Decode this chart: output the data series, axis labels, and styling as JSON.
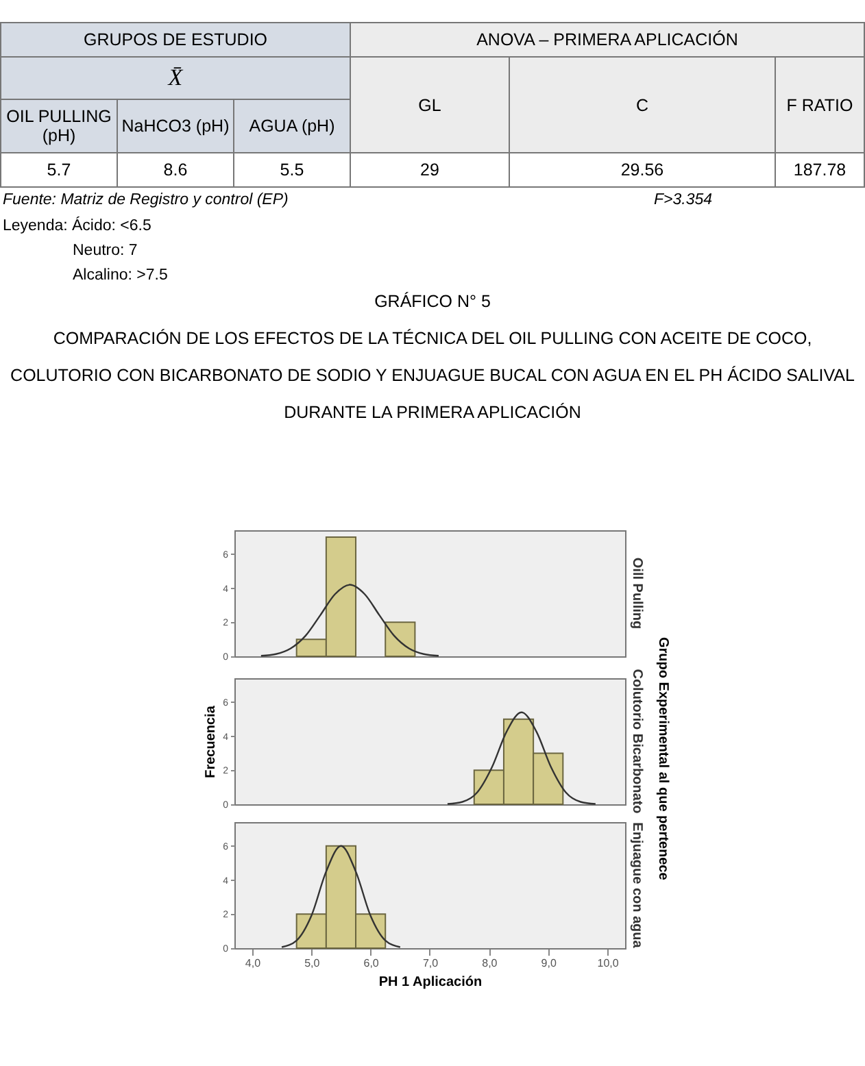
{
  "chart_data": [
    {
      "type": "other",
      "annotations": [
        "GRUPOS DE ESTUDIO",
        "ANOVA – PRIMERA APLICACIÓN",
        "X̄",
        "GL",
        "C",
        "F RATIO",
        "OIL PULLING (pH)",
        "NaHCO3 (pH)",
        "AGUA (pH)",
        "5.7",
        "8.6",
        "5.5",
        "29",
        "29.56",
        "187.78",
        "Fuente: Matriz de Registro y control (EP)",
        "F>3.354",
        "Leyenda: Ácido: <6.5",
        "Neutro: 7",
        "Alcalino: >7.5"
      ]
    },
    {
      "type": "histogram",
      "title": "GRÁFICO N° 5",
      "subtitle": "COMPARACIÓN DE LOS  EFECTOS DE LA TÉCNICA DEL OIL PULLING CON ACEITE DE COCO, COLUTORIO CON BICARBONATO DE SODIO Y ENJUAGUE BUCAL CON AGUA EN EL PH ÁCIDO SALIVAL DURANTE LA PRIMERA APLICACIÓN",
      "y2label": "Oill Pulling",
      "bins": [
        4.75,
        5.25,
        5.75,
        6.25,
        6.75
      ],
      "values": [
        1,
        7,
        0,
        2
      ],
      "color": "#d4cc8c",
      "xlim": [
        3.7,
        10.3
      ],
      "ylim": [
        0,
        7.4
      ],
      "yticks": [
        0,
        2,
        4,
        6
      ],
      "tick_labels": "y",
      "series": [
        {
          "type": "line",
          "color": "#333333",
          "x": [
            4.15,
            4.4,
            4.65,
            4.9,
            5.15,
            5.4,
            5.65,
            5.9,
            6.15,
            6.4,
            6.65,
            6.9,
            7.15
          ],
          "values": [
            0.03,
            0.13,
            0.46,
            1.2,
            2.41,
            3.65,
            4.2,
            3.65,
            2.41,
            1.2,
            0.46,
            0.13,
            0.03
          ]
        }
      ]
    },
    {
      "type": "histogram",
      "ylabel": "Frecuencia",
      "y2label": "Colutorio Bicarbonato",
      "annotations": [
        "Grupo Experimental al que pertenece"
      ],
      "bins": [
        7.75,
        8.25,
        8.75,
        9.25
      ],
      "values": [
        2,
        5,
        3
      ],
      "color": "#d4cc8c",
      "xlim": [
        3.7,
        10.3
      ],
      "ylim": [
        0,
        7.4
      ],
      "yticks": [
        0,
        2,
        4,
        6
      ],
      "tick_labels": "y",
      "series": [
        {
          "type": "line",
          "color": "#333333",
          "x": [
            7.3,
            7.55,
            7.8,
            8.05,
            8.3,
            8.55,
            8.8,
            9.05,
            9.3,
            9.55,
            9.8
          ],
          "values": [
            0.02,
            0.14,
            0.69,
            2.17,
            4.28,
            5.4,
            4.28,
            2.17,
            0.69,
            0.14,
            0.02
          ]
        }
      ]
    },
    {
      "type": "histogram",
      "xlabel": "PH 1 Aplicación",
      "y2label": "Enjuague con agua",
      "bins": [
        4.75,
        5.25,
        5.75,
        6.25
      ],
      "values": [
        2,
        6,
        2
      ],
      "color": "#d4cc8c",
      "xlim": [
        3.7,
        10.3
      ],
      "ylim": [
        0,
        7.4
      ],
      "yticks": [
        0,
        2,
        4,
        6
      ],
      "xticks": [
        {
          "value": 4,
          "label": "4,0"
        },
        {
          "value": 5,
          "label": "5,0"
        },
        {
          "value": 6,
          "label": "6,0"
        },
        {
          "value": 7,
          "label": "7,0"
        },
        {
          "value": 8,
          "label": "8,0"
        },
        {
          "value": 9,
          "label": "9,0"
        },
        {
          "value": 10,
          "label": "10,0"
        }
      ],
      "series": [
        {
          "type": "line",
          "color": "#333333",
          "x": [
            4.5,
            4.75,
            5.0,
            5.25,
            5.5,
            5.75,
            6.0,
            6.25,
            6.5
          ],
          "values": [
            0.06,
            0.45,
            1.9,
            4.5,
            6.0,
            4.5,
            1.9,
            0.45,
            0.06
          ]
        }
      ]
    }
  ]
}
